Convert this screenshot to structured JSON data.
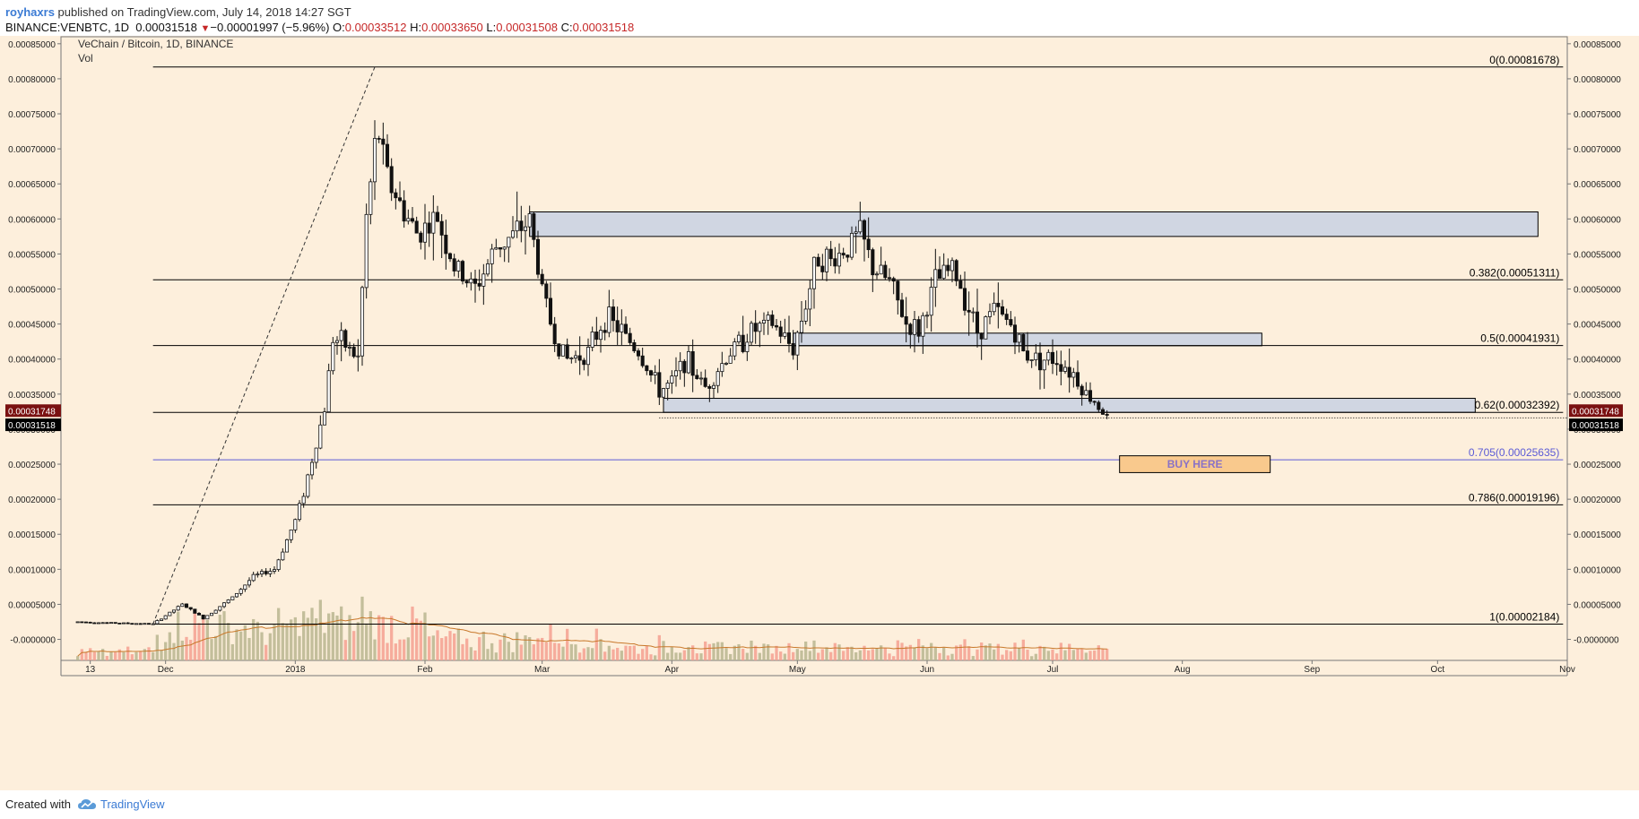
{
  "header": {
    "user": "royhaxrs",
    "published_text": "published on TradingView.com, July 14, 2018 14:27 SGT",
    "symbol": "BINANCE:VENBTC, 1D",
    "last": "0.00031518",
    "change_arrow": "▼",
    "change": "−0.00001997 (−5.96%)",
    "o_label": "O:",
    "o_value": "0.00033512",
    "h_label": "H:",
    "h_value": "0.00033650",
    "l_label": "L:",
    "l_value": "0.00031508",
    "c_label": "C:",
    "c_value": "0.00031518"
  },
  "pane": {
    "title": "VeChain / Bitcoin, 1D, BINANCE",
    "indicator": "Vol"
  },
  "footer": {
    "created_with": "Created with",
    "brand": "TradingView",
    "logo_icon": "tradingview-cloud-icon"
  },
  "colors": {
    "background": "#fdefdc",
    "frame": "#fdefdc",
    "candle": "#111111",
    "fib_line": "#000000",
    "fib_705": "#5b5bd6",
    "zone_fill": "#d0d6e2",
    "vol_up": "#b9b58f",
    "vol_down": "#f4a090",
    "vol_ma": "#c8782a",
    "trend": "#333333",
    "price_tag_red": "#7a1111",
    "price_tag_black": "#000000"
  },
  "chart_data": {
    "type": "candlestick",
    "title": "VeChain / Bitcoin, 1D, BINANCE",
    "x_ticks": [
      "13",
      "Dec",
      "2018",
      "Feb",
      "Mar",
      "Apr",
      "May",
      "Jun",
      "Jul",
      "Aug",
      "Sep",
      "Oct",
      "Nov"
    ],
    "y_ticks": [
      "0.00085000",
      "0.00080000",
      "0.00075000",
      "0.00070000",
      "0.00065000",
      "0.00060000",
      "0.00055000",
      "0.00050000",
      "0.00045000",
      "0.00040000",
      "0.00035000",
      "0.00030000",
      "0.00025000",
      "0.00020000",
      "0.00015000",
      "0.00010000",
      "0.00005000",
      "-0.0000000"
    ],
    "ylim": [
      -3e-05,
      0.00086
    ],
    "xlim": [
      "2017-11-06",
      "2018-11-01"
    ],
    "price_tags": [
      {
        "value": 0.00031748,
        "label": "0.00031748",
        "style": "red"
      },
      {
        "value": 0.00031518,
        "label": "0.00031518",
        "style": "black"
      }
    ],
    "fib_levels": [
      {
        "ratio": "0",
        "value": 0.00081678,
        "label": "0(0.00081678)"
      },
      {
        "ratio": "0.382",
        "value": 0.00051311,
        "label": "0.382(0.00051311)"
      },
      {
        "ratio": "0.5",
        "value": 0.00041931,
        "label": "0.5(0.00041931)"
      },
      {
        "ratio": "0.62",
        "value": 0.00032392,
        "label": "0.62(0.00032392)"
      },
      {
        "ratio": "0.705",
        "value": 0.00025635,
        "label": "0.705(0.00025635)"
      },
      {
        "ratio": "0.786",
        "value": 0.00019196,
        "label": "0.786(0.00019196)"
      },
      {
        "ratio": "1",
        "value": 2.184e-05,
        "label": "1(0.00002184)"
      }
    ],
    "fib_start": "2017-11-28",
    "fib_end": "2018-10-31",
    "trend_line": {
      "from": [
        "2017-11-28",
        2.184e-05
      ],
      "to": [
        "2018-01-20",
        0.00081678
      ]
    },
    "zones": [
      {
        "from": "2018-02-26",
        "to": "2018-10-25",
        "low": 0.000575,
        "high": 0.00061
      },
      {
        "from": "2018-04-30",
        "to": "2018-08-20",
        "low": 0.000419,
        "high": 0.000437
      },
      {
        "from": "2018-03-30",
        "to": "2018-10-10",
        "low": 0.000324,
        "high": 0.000344
      }
    ],
    "support_line": {
      "from": "2018-03-29",
      "to": "2018-11-01",
      "value": 0.000316
    },
    "annotation": {
      "text": "BUY HERE",
      "from": "2018-07-17",
      "to": "2018-08-22",
      "low": 0.000238,
      "high": 0.000262
    },
    "ohlc_keypoints": [
      [
        "2017-11-10",
        2.5e-05
      ],
      [
        "2017-11-28",
        2.2e-05
      ],
      [
        "2017-12-05",
        5e-05
      ],
      [
        "2017-12-10",
        3e-05
      ],
      [
        "2017-12-17",
        6e-05
      ],
      [
        "2017-12-22",
        9e-05
      ],
      [
        "2017-12-27",
        0.0001
      ],
      [
        "2018-01-01",
        0.00017
      ],
      [
        "2018-01-03",
        0.00021
      ],
      [
        "2018-01-06",
        0.00028
      ],
      [
        "2018-01-08",
        0.00033
      ],
      [
        "2018-01-10",
        0.00043
      ],
      [
        "2018-01-13",
        0.00042
      ],
      [
        "2018-01-16",
        0.0004
      ],
      [
        "2018-01-18",
        0.0006
      ],
      [
        "2018-01-20",
        0.0007
      ],
      [
        "2018-01-21",
        0.00072
      ],
      [
        "2018-01-23",
        0.00066
      ],
      [
        "2018-01-26",
        0.00062
      ],
      [
        "2018-01-30",
        0.00058
      ],
      [
        "2018-02-04",
        0.0006
      ],
      [
        "2018-02-08",
        0.00053
      ],
      [
        "2018-02-13",
        0.0005
      ],
      [
        "2018-02-18",
        0.00056
      ],
      [
        "2018-02-23",
        0.00058
      ],
      [
        "2018-02-26",
        0.0006
      ],
      [
        "2018-03-01",
        0.0005
      ],
      [
        "2018-03-04",
        0.00043
      ],
      [
        "2018-03-07",
        0.0004
      ],
      [
        "2018-03-12",
        0.00041
      ],
      [
        "2018-03-16",
        0.00046
      ],
      [
        "2018-03-20",
        0.00044
      ],
      [
        "2018-03-24",
        0.00041
      ],
      [
        "2018-03-29",
        0.000355
      ],
      [
        "2018-04-01",
        0.000365
      ],
      [
        "2018-04-04",
        0.0004
      ],
      [
        "2018-04-09",
        0.00036
      ],
      [
        "2018-04-15",
        0.00041
      ],
      [
        "2018-04-20",
        0.00044
      ],
      [
        "2018-04-25",
        0.00045
      ],
      [
        "2018-04-30",
        0.000415
      ],
      [
        "2018-05-03",
        0.00048
      ],
      [
        "2018-05-06",
        0.00055
      ],
      [
        "2018-05-09",
        0.00054
      ],
      [
        "2018-05-13",
        0.00056
      ],
      [
        "2018-05-16",
        0.00058
      ],
      [
        "2018-05-19",
        0.00053
      ],
      [
        "2018-05-23",
        0.00051
      ],
      [
        "2018-05-27",
        0.00045
      ],
      [
        "2018-05-30",
        0.00044
      ],
      [
        "2018-06-03",
        0.00051
      ],
      [
        "2018-06-07",
        0.00053
      ],
      [
        "2018-06-10",
        0.00049
      ],
      [
        "2018-06-13",
        0.00044
      ],
      [
        "2018-06-17",
        0.00047
      ],
      [
        "2018-06-21",
        0.00045
      ],
      [
        "2018-06-24",
        0.00041
      ],
      [
        "2018-06-28",
        0.0004
      ],
      [
        "2018-07-02",
        0.0004
      ],
      [
        "2018-07-06",
        0.00038
      ],
      [
        "2018-07-09",
        0.00035
      ],
      [
        "2018-07-12",
        0.000335
      ],
      [
        "2018-07-14",
        0.000315
      ]
    ],
    "volume_note": "volume bars with moving average at the bottom of the pane"
  }
}
